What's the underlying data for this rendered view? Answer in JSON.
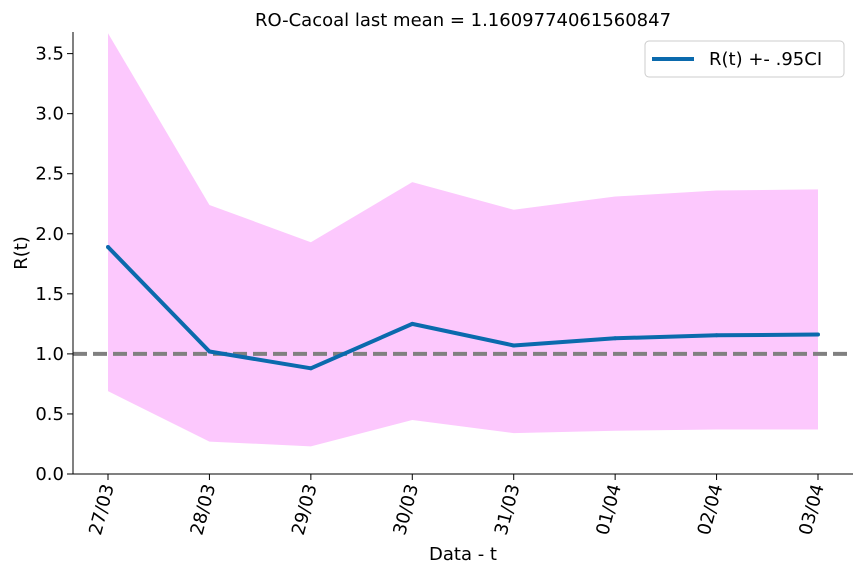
{
  "chart_data": {
    "type": "line",
    "title": "RO-Cacoal last mean = 1.1609774061560847",
    "xlabel": "Data - t",
    "ylabel": "R(t)",
    "categories": [
      "27/03",
      "28/03",
      "29/03",
      "30/03",
      "31/03",
      "01/04",
      "02/04",
      "03/04"
    ],
    "series": [
      {
        "name": "R(t) +- .95CI",
        "values": [
          1.89,
          1.02,
          0.88,
          1.25,
          1.07,
          1.13,
          1.155,
          1.161
        ],
        "lower": [
          0.69,
          0.27,
          0.23,
          0.45,
          0.34,
          0.36,
          0.37,
          0.37
        ],
        "upper": [
          3.67,
          2.24,
          1.93,
          2.43,
          2.2,
          2.31,
          2.36,
          2.37
        ],
        "color": "#0b6aad",
        "band_color": "#fcc8fd"
      }
    ],
    "reference_line": {
      "value": 1.0,
      "color": "#808080",
      "style": "dashed"
    },
    "ylim": [
      0,
      3.68
    ],
    "yticks": [
      "0.0",
      "0.5",
      "1.0",
      "1.5",
      "2.0",
      "2.5",
      "3.0",
      "3.5"
    ],
    "grid": false,
    "legend_position": "top-right"
  }
}
